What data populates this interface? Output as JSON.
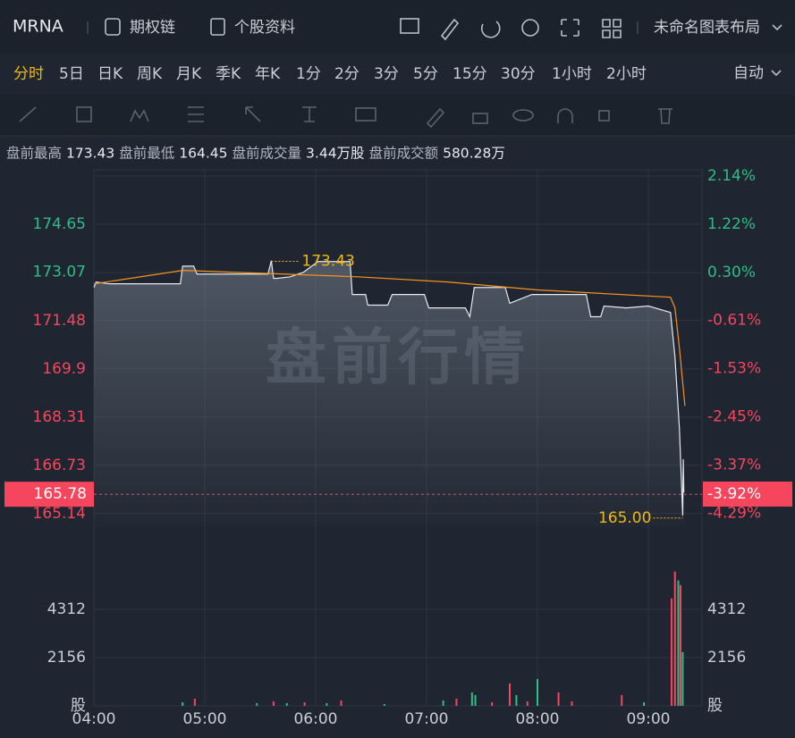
{
  "header": {
    "symbol": "MRNA",
    "links": [
      "期权链",
      "个股资料"
    ],
    "layout": "未命名图表布局"
  },
  "periods": {
    "items": [
      "分时",
      "5日",
      "日K",
      "周K",
      "月K",
      "季K",
      "年K",
      "1分",
      "2分",
      "3分",
      "5分",
      "15分",
      "30分",
      "1小时",
      "2小时"
    ],
    "active": 0,
    "mode": "自动"
  },
  "stats": [
    [
      "盘前最高",
      "173.43"
    ],
    [
      "盘前最低",
      "164.45"
    ],
    [
      "盘前成交量",
      "3.44万股"
    ],
    [
      "盘前成交额",
      "580.28万"
    ]
  ],
  "chart_data": {
    "type": "line",
    "watermark": "盘前行情",
    "up_color": "#2ebd85",
    "down_color": "#f6465d",
    "xlim": [
      4,
      9.4839
    ],
    "xticks": [
      {
        "value": 4,
        "label": "04:00"
      },
      {
        "value": 5,
        "label": "05:00"
      },
      {
        "value": 6,
        "label": "06:00"
      },
      {
        "value": 7,
        "label": "07:00"
      },
      {
        "value": 8,
        "label": "08:00"
      },
      {
        "value": 9,
        "label": "09:00"
      }
    ],
    "ylim": [
      164.7,
      176.23
    ],
    "yticks": [
      174.65,
      173.07,
      171.48,
      169.9,
      168.31,
      166.73,
      165.14
    ],
    "y2lim": [
      -4.55,
      2.14
    ],
    "y2ticks": [
      {
        "value": 2.14,
        "label": "2.14%"
      },
      {
        "value": 1.22,
        "label": "1.22%"
      },
      {
        "value": 0.3,
        "label": "0.30%"
      },
      {
        "value": -0.61,
        "label": "-0.61%"
      },
      {
        "value": -1.53,
        "label": "-1.53%"
      },
      {
        "value": -2.45,
        "label": "-2.45%"
      },
      {
        "value": -3.37,
        "label": "-3.37%"
      },
      {
        "value": -4.29,
        "label": "-4.29%"
      }
    ],
    "grid": true,
    "series": [
      {
        "color": "#e6e9ef",
        "x": [
          4,
          4.02,
          4.14,
          4.78,
          4.8,
          4.9,
          4.93,
          5.57,
          5.6,
          5.62,
          5.65,
          5.77,
          5.89,
          6.02,
          6.31,
          6.33,
          6.45,
          6.47,
          6.65,
          6.69,
          6.98,
          7.02,
          7.35,
          7.39,
          7.43,
          7.47,
          7.71,
          7.75,
          7.95,
          8.44,
          8.48,
          8.57,
          8.6,
          8.8,
          9.0,
          9.2,
          9.24,
          9.28,
          9.31,
          9.315,
          9.32
        ],
        "values": [
          172.57,
          172.75,
          172.69,
          172.69,
          173.27,
          173.27,
          173.01,
          173.01,
          173.45,
          172.87,
          172.87,
          172.92,
          173.07,
          173.42,
          173.42,
          172.34,
          172.34,
          171.99,
          171.99,
          172.34,
          172.34,
          171.9,
          171.9,
          171.61,
          172.57,
          172.57,
          172.57,
          172.05,
          172.34,
          172.34,
          171.61,
          171.61,
          171.96,
          171.9,
          171.96,
          171.75,
          170.29,
          167.95,
          165.08,
          166.93,
          165.84
        ]
      },
      {
        "color": "#f7931a",
        "x": [
          4,
          4.8,
          6.38,
          7.19,
          8.0,
          9.2,
          9.24,
          9.28,
          9.33
        ],
        "values": [
          172.69,
          173.13,
          172.92,
          172.75,
          172.49,
          172.25,
          171.9,
          170.59,
          168.68
        ]
      }
    ],
    "high": 173.43,
    "low": {
      "value": 165,
      "label": "165.00"
    },
    "last_price": 165.78,
    "last_change": {
      "value": -3.92,
      "label": "-3.92%"
    },
    "volume": {
      "ylim": [
        0,
        5989
      ],
      "yticks": [
        2156,
        4312
      ],
      "unit": "股",
      "x": [
        4.8,
        4.91,
        5.47,
        5.62,
        5.74,
        5.9,
        6.1,
        6.23,
        6.62,
        7.15,
        7.27,
        7.41,
        7.44,
        7.59,
        7.75,
        7.81,
        7.91,
        8.0,
        8.19,
        8.31,
        8.76,
        8.96,
        9.21,
        9.24,
        9.27,
        9.29,
        9.31
      ],
      "values": [
        160,
        320,
        120,
        200,
        120,
        160,
        120,
        240,
        80,
        240,
        320,
        600,
        480,
        160,
        1000,
        480,
        200,
        1200,
        600,
        200,
        480,
        160,
        4800,
        6000,
        5600,
        5400,
        2400
      ],
      "colors": [
        "#2ebd85",
        "#f6465d",
        "#2ebd85",
        "#f6465d",
        "#2ebd85",
        "#f6465d",
        "#2ebd85",
        "#f6465d",
        "#2ebd85",
        "#2ebd85",
        "#f6465d",
        "#2ebd85",
        "#2ebd85",
        "#f6465d",
        "#f6465d",
        "#2ebd85",
        "#f6465d",
        "#2ebd85",
        "#f6465d",
        "#f6465d",
        "#f6465d",
        "#2ebd85",
        "#f6465d",
        "#f6465d",
        "#2ebd85",
        "#f6465d",
        "#2ebd85"
      ]
    }
  }
}
